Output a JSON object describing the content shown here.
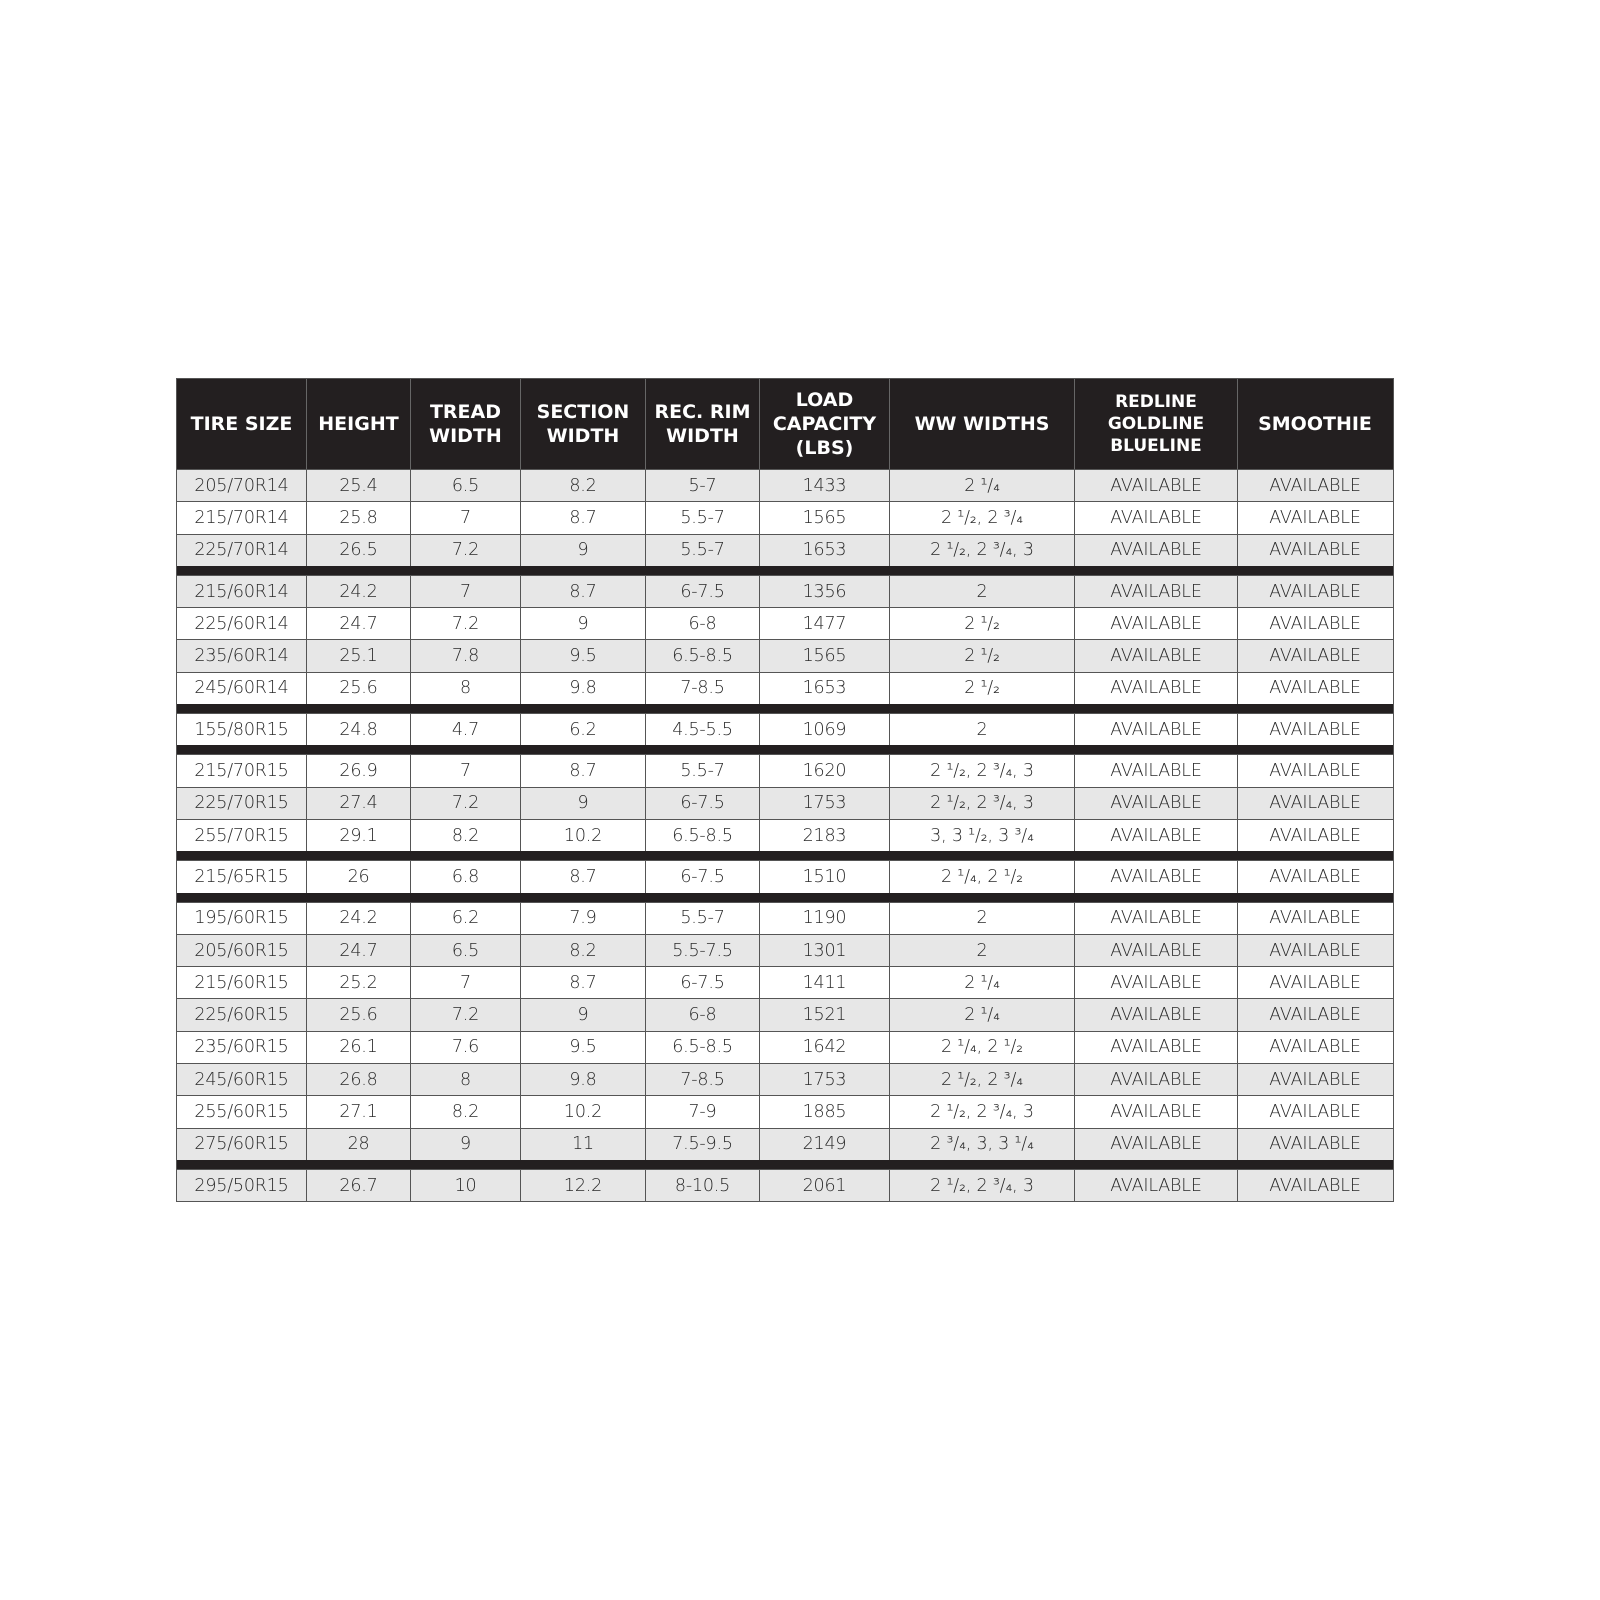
{
  "headers": [
    "TIRE SIZE",
    "HEIGHT",
    "TREAD\nWIDTH",
    "SECTION\nWIDTH",
    "REC. RIM\nWIDTH",
    "LOAD\nCAPACITY\n(LBS)",
    "WW WIDTHS",
    "REDLINE\nGOLDLINE\nBLUELINE",
    "SMOOTHIE"
  ],
  "groups": [
    [
      [
        "205/70R14",
        "25.4",
        "6.5",
        "8.2",
        "5-7",
        "1433",
        "2 ¹/₄",
        "AVAILABLE",
        "AVAILABLE"
      ],
      [
        "215/70R14",
        "25.8",
        "7",
        "8.7",
        "5.5-7",
        "1565",
        "2 ¹/₂,  2 ³/₄",
        "AVAILABLE",
        "AVAILABLE"
      ],
      [
        "225/70R14",
        "26.5",
        "7.2",
        "9",
        "5.5-7",
        "1653",
        "2 ¹/₂,  2 ³/₄,  3",
        "AVAILABLE",
        "AVAILABLE"
      ]
    ],
    [
      [
        "215/60R14",
        "24.2",
        "7",
        "8.7",
        "6-7.5",
        "1356",
        "2",
        "AVAILABLE",
        "AVAILABLE"
      ],
      [
        "225/60R14",
        "24.7",
        "7.2",
        "9",
        "6-8",
        "1477",
        "2 ¹/₂",
        "AVAILABLE",
        "AVAILABLE"
      ],
      [
        "235/60R14",
        "25.1",
        "7.8",
        "9.5",
        "6.5-8.5",
        "1565",
        "2 ¹/₂",
        "AVAILABLE",
        "AVAILABLE"
      ],
      [
        "245/60R14",
        "25.6",
        "8",
        "9.8",
        "7-8.5",
        "1653",
        "2 ¹/₂",
        "AVAILABLE",
        "AVAILABLE"
      ]
    ],
    [
      [
        "155/80R15",
        "24.8",
        "4.7",
        "6.2",
        "4.5-5.5",
        "1069",
        "2",
        "AVAILABLE",
        "AVAILABLE"
      ]
    ],
    [
      [
        "215/70R15",
        "26.9",
        "7",
        "8.7",
        "5.5-7",
        "1620",
        "2 ¹/₂,  2 ³/₄,  3",
        "AVAILABLE",
        "AVAILABLE"
      ],
      [
        "225/70R15",
        "27.4",
        "7.2",
        "9",
        "6-7.5",
        "1753",
        "2 ¹/₂,  2 ³/₄,  3",
        "AVAILABLE",
        "AVAILABLE"
      ],
      [
        "255/70R15",
        "29.1",
        "8.2",
        "10.2",
        "6.5-8.5",
        "2183",
        "3,  3 ¹/₂,  3 ³/₄",
        "AVAILABLE",
        "AVAILABLE"
      ]
    ],
    [
      [
        "215/65R15",
        "26",
        "6.8",
        "8.7",
        "6-7.5",
        "1510",
        "2 ¹/₄,  2 ¹/₂",
        "AVAILABLE",
        "AVAILABLE"
      ]
    ],
    [
      [
        "195/60R15",
        "24.2",
        "6.2",
        "7.9",
        "5.5-7",
        "1190",
        "2",
        "AVAILABLE",
        "AVAILABLE"
      ],
      [
        "205/60R15",
        "24.7",
        "6.5",
        "8.2",
        "5.5-7.5",
        "1301",
        "2",
        "AVAILABLE",
        "AVAILABLE"
      ],
      [
        "215/60R15",
        "25.2",
        "7",
        "8.7",
        "6-7.5",
        "1411",
        "2 ¹/₄",
        "AVAILABLE",
        "AVAILABLE"
      ],
      [
        "225/60R15",
        "25.6",
        "7.2",
        "9",
        "6-8",
        "1521",
        "2 ¹/₄",
        "AVAILABLE",
        "AVAILABLE"
      ],
      [
        "235/60R15",
        "26.1",
        "7.6",
        "9.5",
        "6.5-8.5",
        "1642",
        "2 ¹/₄,  2 ¹/₂",
        "AVAILABLE",
        "AVAILABLE"
      ],
      [
        "245/60R15",
        "26.8",
        "8",
        "9.8",
        "7-8.5",
        "1753",
        "2 ¹/₂,  2 ³/₄",
        "AVAILABLE",
        "AVAILABLE"
      ],
      [
        "255/60R15",
        "27.1",
        "8.2",
        "10.2",
        "7-9",
        "1885",
        "2 ¹/₂,  2 ³/₄,  3",
        "AVAILABLE",
        "AVAILABLE"
      ],
      [
        "275/60R15",
        "28",
        "9",
        "11",
        "7.5-9.5",
        "2149",
        "2 ³/₄,  3,  3 ¹/₄",
        "AVAILABLE",
        "AVAILABLE"
      ]
    ],
    [
      [
        "295/50R15",
        "26.7",
        "10",
        "12.2",
        "8-10.5",
        "2061",
        "2 ¹/₂,  2 ³/₄,  3",
        "AVAILABLE",
        "AVAILABLE"
      ]
    ]
  ]
}
